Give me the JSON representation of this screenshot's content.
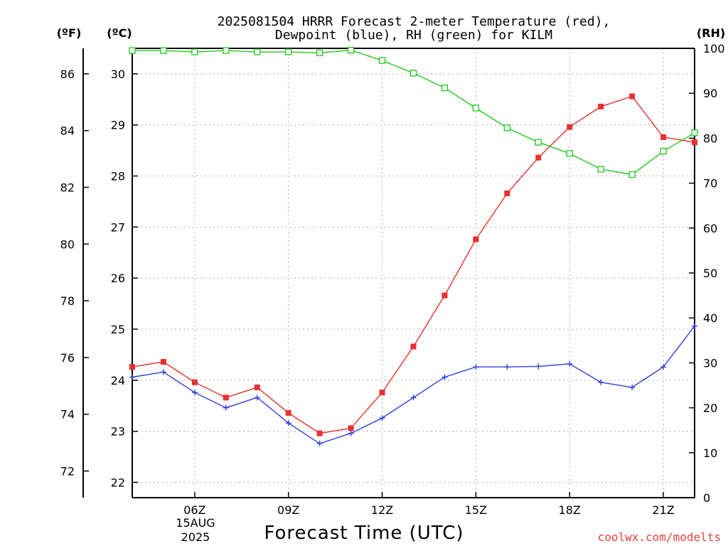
{
  "header": {
    "title_line1": "2025081504 HRRR Forecast 2-meter Temperature (red),",
    "title_line2": "Dewpoint (blue), RH (green) for KILM"
  },
  "footer": {
    "credit": "coolwx.com/modelts"
  },
  "chart_data": {
    "type": "line",
    "title": "2025081504 HRRR Forecast 2-meter Temperature (red), Dewpoint (blue), RH (green) for KILM",
    "xlabel": "Forecast Time (UTC)",
    "date_label_line1": "15AUG",
    "date_label_line2": "2025",
    "x_hours": [
      4,
      5,
      6,
      7,
      8,
      9,
      10,
      11,
      12,
      13,
      14,
      15,
      16,
      17,
      18,
      19,
      20,
      21,
      22
    ],
    "x_tick_labels": [
      "06Z",
      "09Z",
      "12Z",
      "15Z",
      "18Z",
      "21Z"
    ],
    "x_tick_hours": [
      6,
      9,
      12,
      15,
      18,
      21
    ],
    "xlim": [
      4,
      22
    ],
    "left_axis_c": {
      "unit": "(ºC)",
      "ylim": [
        21.7,
        30.5
      ],
      "ticks": [
        22,
        23,
        24,
        25,
        26,
        27,
        28,
        29,
        30
      ]
    },
    "left_axis_f": {
      "unit": "(ºF)",
      "ticks": [
        72,
        74,
        76,
        78,
        80,
        82,
        84,
        86
      ]
    },
    "right_axis_rh": {
      "unit": "(RH)",
      "ylim": [
        0,
        100
      ],
      "ticks": [
        0,
        10,
        20,
        30,
        40,
        50,
        60,
        70,
        80,
        90,
        100
      ]
    },
    "grid": true,
    "series": [
      {
        "color": "#e83030",
        "marker": "filled-square",
        "axis": "celsius",
        "values": [
          24.26,
          24.36,
          23.96,
          23.66,
          23.86,
          23.36,
          22.96,
          23.06,
          23.76,
          24.66,
          25.66,
          26.76,
          27.66,
          28.36,
          28.96,
          29.36,
          29.56,
          28.76,
          28.66
        ]
      },
      {
        "color": "#2e3ee0",
        "marker": "plus",
        "axis": "celsius",
        "values": [
          24.06,
          24.16,
          23.76,
          23.46,
          23.66,
          23.16,
          22.76,
          22.96,
          23.26,
          23.66,
          24.06,
          24.26,
          24.26,
          24.27,
          24.32,
          23.96,
          23.86,
          24.26,
          25.06
        ]
      },
      {
        "color": "#22c81e",
        "marker": "open-square",
        "axis": "rh",
        "values": [
          99.5,
          99.5,
          99.2,
          99.5,
          99.2,
          99.2,
          99.0,
          99.6,
          97.3,
          94.5,
          91.2,
          86.7,
          82.3,
          79.1,
          76.6,
          73.1,
          71.9,
          77.1,
          81.2
        ]
      }
    ]
  }
}
